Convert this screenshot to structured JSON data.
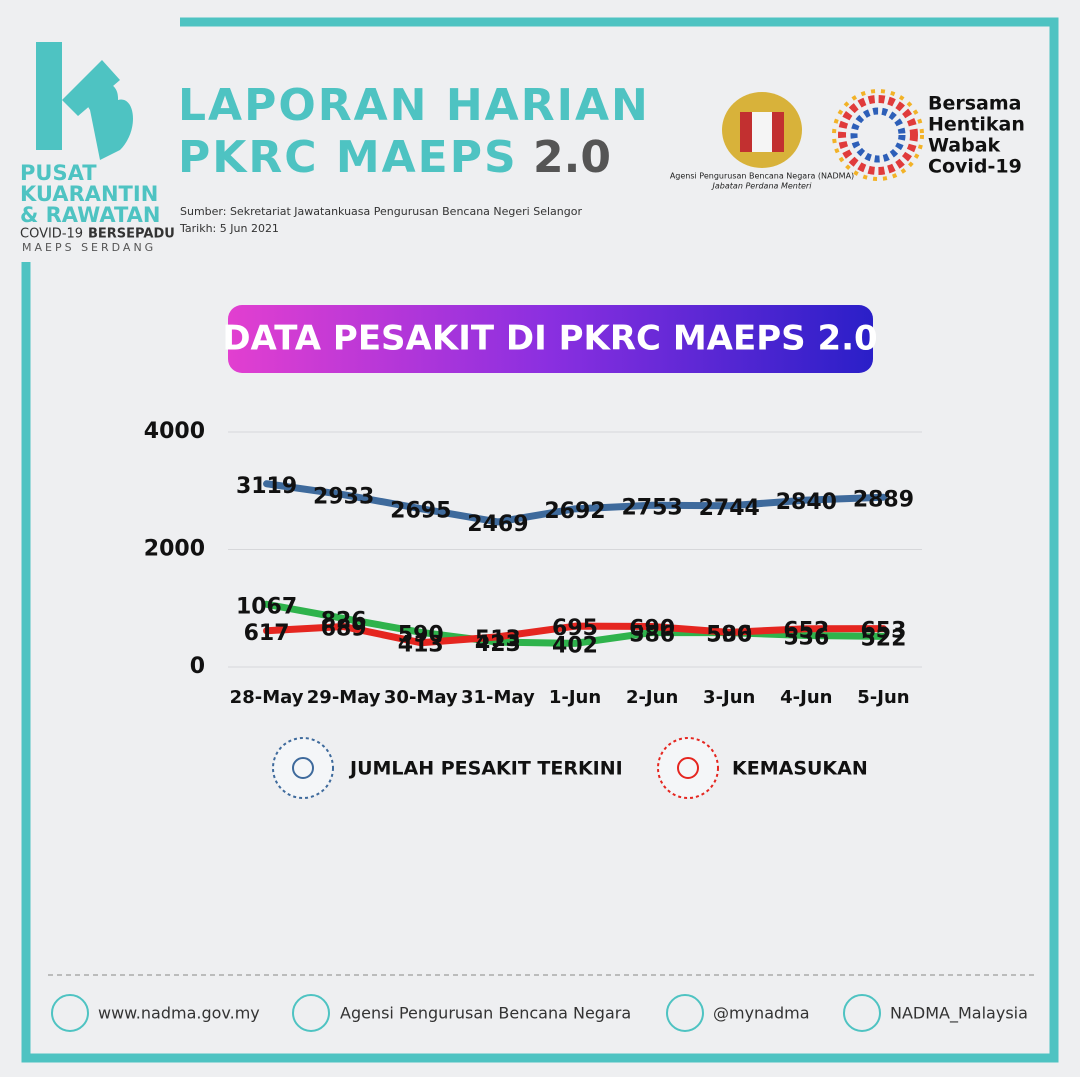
{
  "logo": {
    "line1": "PUSAT",
    "line2": "KUARANTIN",
    "line3": "& RAWATAN",
    "line4a": "COVID-19",
    "line4b": "BERSEPADU",
    "line5": "MAEPS SERDANG"
  },
  "header": {
    "title_line1": "LAPORAN HARIAN",
    "title_line2a": "PKRC MAEPS",
    "title_line2b": "2.0",
    "source": "Sumber: Sekretariat Jawatankuasa Pengurusan Bencana Negeri Selangor",
    "date": "Tarikh: 5 Jun 2021",
    "agency_line1": "Agensi Pengurusan Bencana Negara (NADMA)",
    "agency_line2": "Jabatan Perdana Menteri",
    "campaign": [
      "Bersama",
      "Hentikan",
      "Wabak",
      "Covid-19"
    ]
  },
  "chart_data": {
    "type": "line",
    "title": "DATA PESAKIT DI PKRC MAEPS 2.0",
    "categories": [
      "28-May",
      "29-May",
      "30-May",
      "31-May",
      "1-Jun",
      "2-Jun",
      "3-Jun",
      "4-Jun",
      "5-Jun"
    ],
    "series": [
      {
        "color": "#2fb34c",
        "values": [
          1067,
          826,
          590,
          423,
          402,
          586,
          586,
          536,
          522
        ]
      },
      {
        "name": "KEMASUKAN",
        "color": "#e52620",
        "values": [
          617,
          689,
          413,
          513,
          695,
          690,
          590,
          652,
          653
        ]
      },
      {
        "name": "JUMLAH PESAKIT TERKINI",
        "color": "#3e6a9c",
        "values": [
          3119,
          2933,
          2695,
          2469,
          2692,
          2753,
          2744,
          2840,
          2889
        ]
      }
    ],
    "ylim": [
      0,
      4000
    ],
    "yticks": [
      0,
      2000,
      4000
    ],
    "grid": true
  },
  "footer": {
    "website": "www.nadma.gov.my",
    "facebook": "Agensi Pengurusan Bencana Negara",
    "twitter": "@mynadma",
    "instagram": "NADMA_Malaysia"
  }
}
